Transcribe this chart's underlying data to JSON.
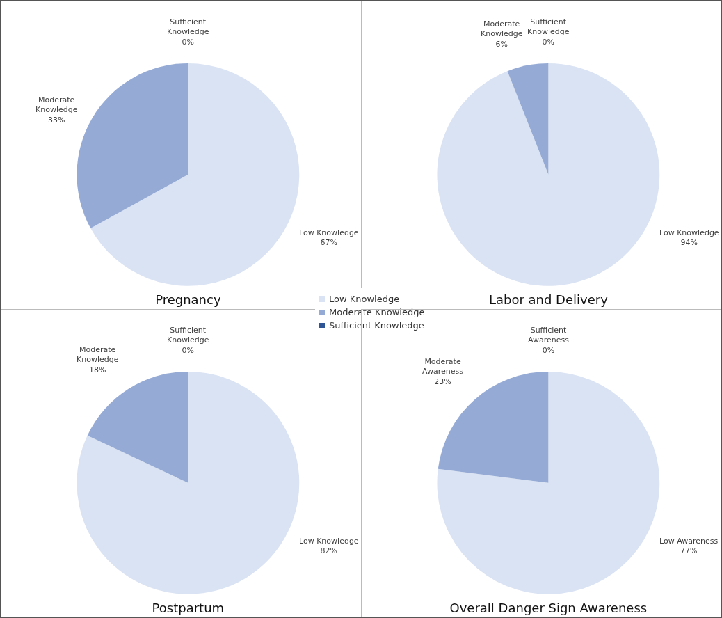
{
  "chart_data": [
    {
      "type": "pie",
      "title": "Pregnancy",
      "categories": [
        "Low Knowledge",
        "Moderate Knowledge",
        "Sufficient Knowledge"
      ],
      "values": [
        67,
        33,
        0
      ],
      "value_labels": [
        "67%",
        "33%",
        "0%"
      ],
      "colors": [
        "#dae3f3",
        "#95abd6",
        "#2f5597"
      ],
      "legend": "bottom right"
    },
    {
      "type": "pie",
      "title": "Labor and Delivery",
      "categories": [
        "Low Knowledge",
        "Moderate Knowledge",
        "Sufficient Knowledge"
      ],
      "values": [
        94,
        6,
        0
      ],
      "value_labels": [
        "94%",
        "6%",
        "0%"
      ],
      "colors": [
        "#dae3f3",
        "#95abd6",
        "#2f5597"
      ]
    },
    {
      "type": "pie",
      "title": "Postpartum",
      "categories": [
        "Low Knowledge",
        "Moderate Knowledge",
        "Sufficient Knowledge"
      ],
      "values": [
        82,
        18,
        0
      ],
      "value_labels": [
        "82%",
        "18%",
        "0%"
      ],
      "colors": [
        "#dae3f3",
        "#95abd6",
        "#2f5597"
      ]
    },
    {
      "type": "pie",
      "title": "Overall Danger Sign Awareness",
      "categories": [
        "Low Awareness",
        "Moderate Awareness",
        "Sufficient Awareness"
      ],
      "values": [
        77,
        23,
        0
      ],
      "value_labels": [
        "77%",
        "23%",
        "0%"
      ],
      "colors": [
        "#dae3f3",
        "#95abd6",
        "#2f5597"
      ]
    }
  ]
}
